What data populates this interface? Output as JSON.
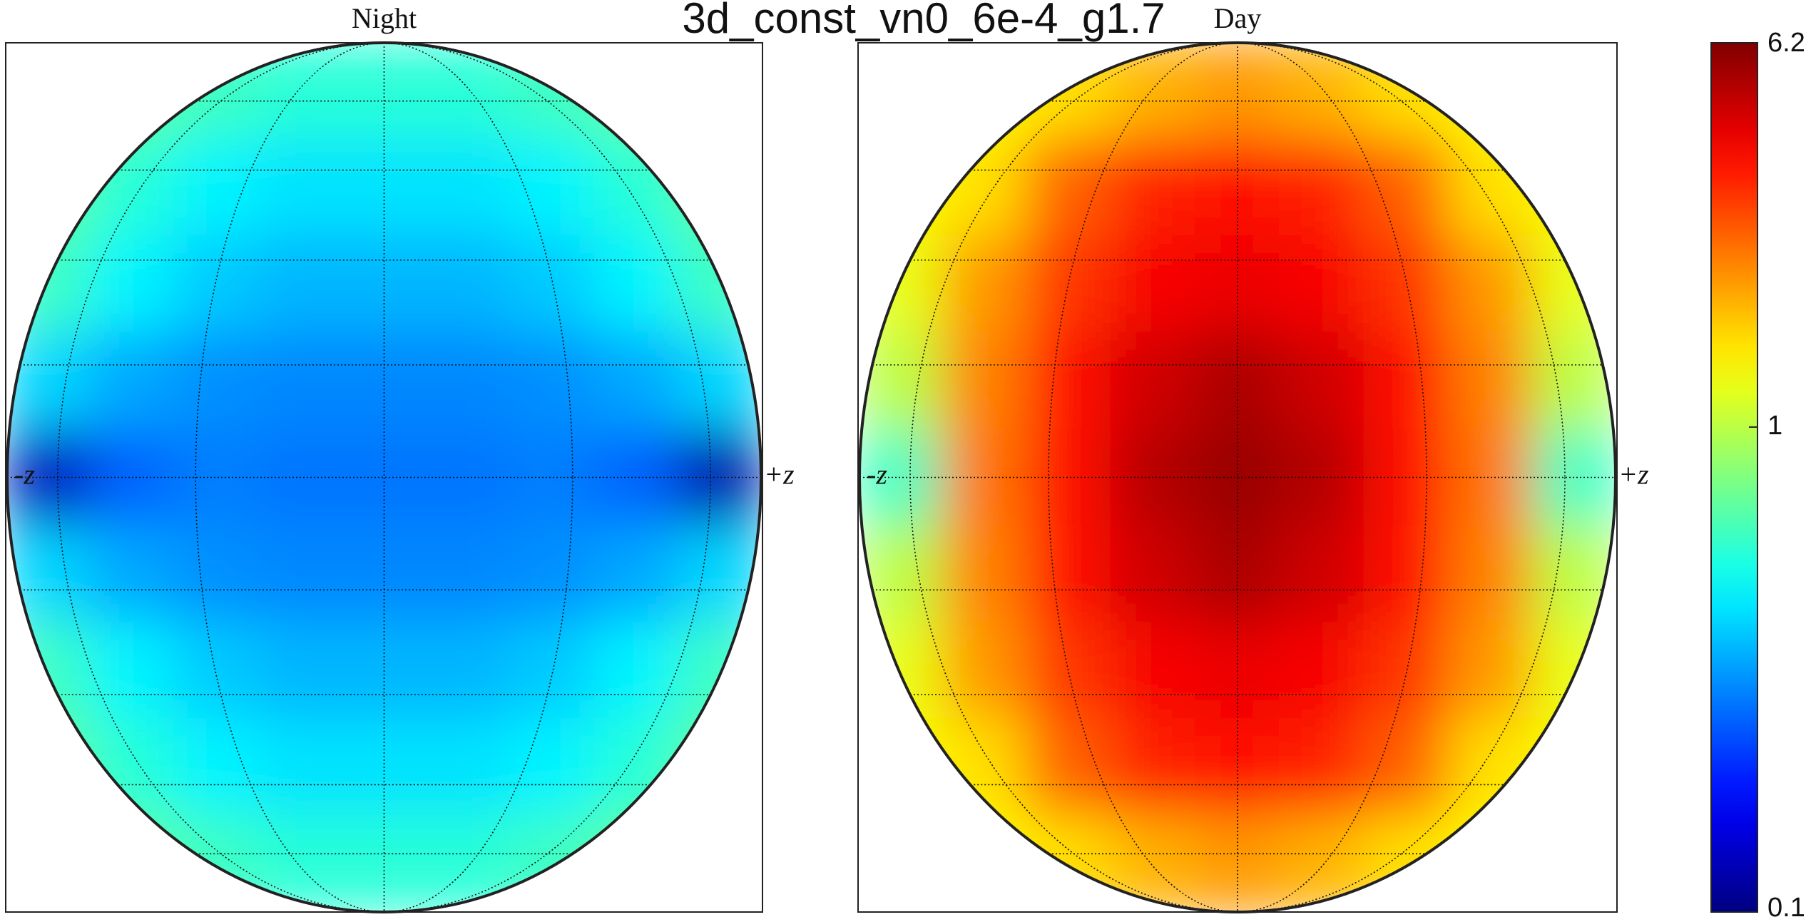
{
  "chart_data": {
    "type": "heatmap",
    "title": "3d_const_vn0_6e-4_g1.7",
    "colormap": "jet",
    "zscale": "log",
    "zlim": [
      0.1,
      6.2
    ],
    "zticks": [
      0.1,
      1,
      6.2
    ],
    "panels": [
      {
        "title": "Night",
        "left_label": "-z",
        "right_label": "+z",
        "values": [
          [
            0.8,
            0.7,
            0.6,
            0.55,
            0.55,
            0.55,
            0.6,
            0.7,
            0.8
          ],
          [
            0.7,
            0.55,
            0.45,
            0.42,
            0.42,
            0.42,
            0.45,
            0.55,
            0.7
          ],
          [
            0.6,
            0.45,
            0.38,
            0.35,
            0.35,
            0.35,
            0.38,
            0.45,
            0.6
          ],
          [
            0.4,
            0.33,
            0.3,
            0.29,
            0.29,
            0.29,
            0.3,
            0.33,
            0.4
          ],
          [
            0.13,
            0.25,
            0.28,
            0.27,
            0.27,
            0.27,
            0.28,
            0.25,
            0.12
          ],
          [
            0.4,
            0.33,
            0.3,
            0.29,
            0.29,
            0.29,
            0.3,
            0.33,
            0.4
          ],
          [
            0.6,
            0.45,
            0.38,
            0.35,
            0.35,
            0.35,
            0.38,
            0.45,
            0.6
          ],
          [
            0.7,
            0.55,
            0.45,
            0.42,
            0.42,
            0.42,
            0.45,
            0.55,
            0.7
          ],
          [
            0.8,
            0.7,
            0.6,
            0.55,
            0.55,
            0.55,
            0.6,
            0.7,
            0.8
          ]
        ]
      },
      {
        "title": "Day",
        "left_label": "-z",
        "right_label": "+z",
        "values": [
          [
            1.3,
            1.3,
            1.5,
            1.8,
            2,
            1.8,
            1.5,
            1.3,
            1.3
          ],
          [
            1.3,
            1.5,
            2.5,
            3.2,
            3.5,
            3.2,
            2.5,
            1.5,
            1.3
          ],
          [
            1.2,
            2,
            3,
            3.8,
            4,
            3.8,
            3,
            2,
            1.2
          ],
          [
            1,
            2.2,
            3.5,
            4.5,
            5.2,
            4.5,
            3.5,
            2.2,
            1
          ],
          [
            0.6,
            2.3,
            3.6,
            5,
            5.6,
            5,
            3.6,
            2.3,
            0.6
          ],
          [
            1,
            2.2,
            3.5,
            4.5,
            5.2,
            4.5,
            3.5,
            2.2,
            1
          ],
          [
            1.2,
            2,
            3,
            3.8,
            4,
            3.8,
            3,
            2,
            1.2
          ],
          [
            1.3,
            1.5,
            2.5,
            3.2,
            3.5,
            3.2,
            2.5,
            1.5,
            1.3
          ],
          [
            1.3,
            1.3,
            1.5,
            1.8,
            2,
            1.8,
            1.5,
            1.3,
            1.3
          ]
        ]
      }
    ]
  }
}
